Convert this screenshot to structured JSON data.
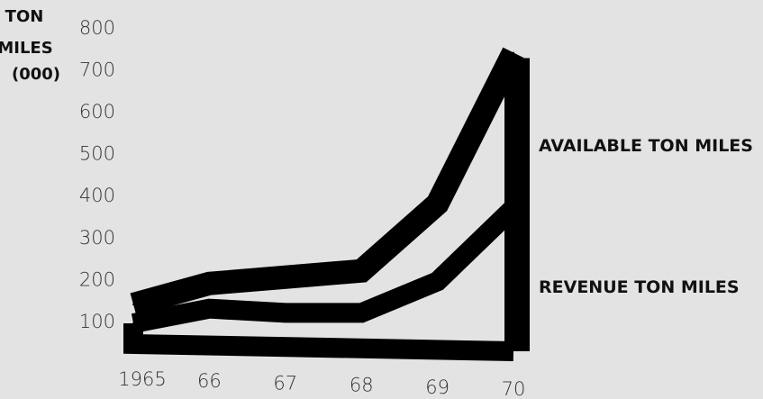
{
  "chart_data": {
    "type": "area",
    "ylabel": [
      "TON",
      "MILES",
      "(000)"
    ],
    "ylim": [
      0,
      800
    ],
    "y_ticks": [
      "100",
      "200",
      "300",
      "400",
      "500",
      "600",
      "700",
      "800"
    ],
    "x": [
      "1965",
      "66",
      "67",
      "68",
      "69",
      "70"
    ],
    "grid": false,
    "series": [
      {
        "name": "AVAILABLE TON MILES",
        "values": [
          160,
          210,
          225,
          240,
          400,
          760
        ]
      },
      {
        "name": "REVENUE TON MILES",
        "values": [
          115,
          150,
          140,
          140,
          215,
          390
        ]
      }
    ],
    "colors": {
      "background": "#e3e3e3",
      "band": "#000000",
      "text": "#111111"
    }
  }
}
